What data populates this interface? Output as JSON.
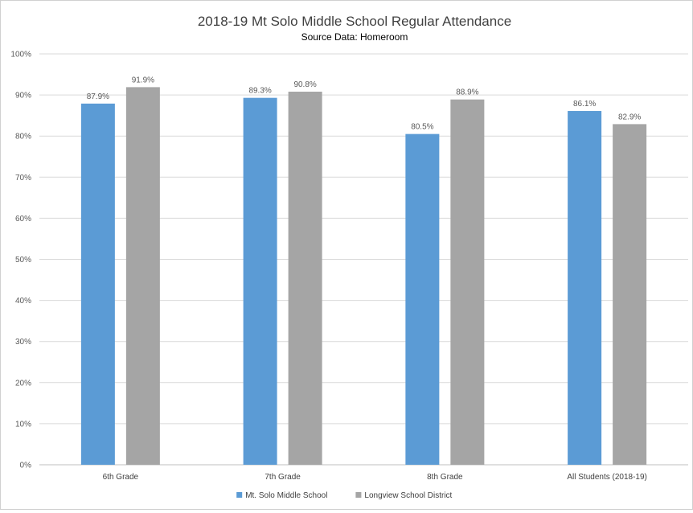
{
  "chart_data": {
    "type": "bar",
    "title": "2018-19 Mt Solo Middle School Regular Attendance",
    "subtitle": "Source Data: Homeroom",
    "categories": [
      "6th Grade",
      "7th Grade",
      "8th Grade",
      "All Students (2018-19)"
    ],
    "series": [
      {
        "name": "Mt. Solo Middle School",
        "color": "#5b9bd5",
        "values": [
          87.9,
          89.3,
          80.5,
          86.1
        ],
        "labels": [
          "87.9%",
          "89.3%",
          "80.5%",
          "86.1%"
        ]
      },
      {
        "name": "Longview School District",
        "color": "#a5a5a5",
        "values": [
          91.9,
          90.8,
          88.9,
          82.9
        ],
        "labels": [
          "91.9%",
          "90.8%",
          "88.9%",
          "82.9%"
        ]
      }
    ],
    "ylim": [
      0,
      100
    ],
    "yticks": [
      0,
      10,
      20,
      30,
      40,
      50,
      60,
      70,
      80,
      90,
      100
    ],
    "ytick_labels": [
      "0%",
      "10%",
      "20%",
      "30%",
      "40%",
      "50%",
      "60%",
      "70%",
      "80%",
      "90%",
      "100%"
    ],
    "grid": true,
    "legend_position": "bottom"
  }
}
